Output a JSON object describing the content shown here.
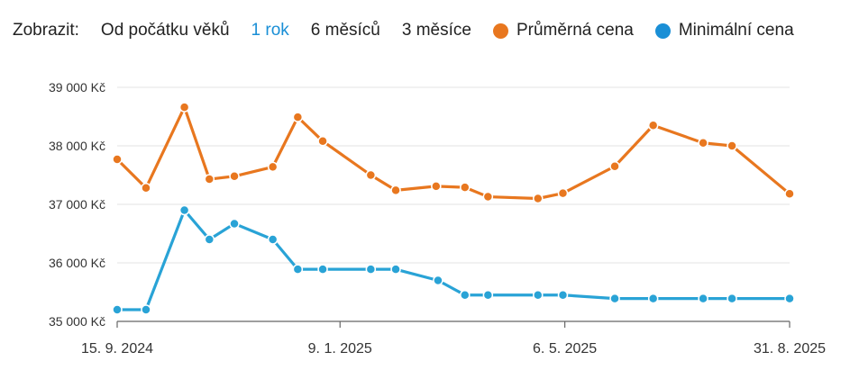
{
  "toolbar": {
    "label": "Zobrazit:",
    "ranges": [
      "Od počátku věků",
      "1 rok",
      "6 měsíců",
      "3 měsíce"
    ],
    "active_range": "1 rok"
  },
  "legend": [
    {
      "name": "Průměrná cena",
      "color": "#e8771f"
    },
    {
      "name": "Minimální cena",
      "color": "#1a8fd6"
    }
  ],
  "chart_data": {
    "type": "line",
    "x_axis": {
      "type": "date",
      "min": "2024-09-15",
      "max": "2025-08-31",
      "tick_dates": [
        "2024-09-15",
        "2025-01-09",
        "2025-05-06",
        "2025-08-31"
      ],
      "tick_labels": [
        "15. 9. 2024",
        "9. 1. 2025",
        "6. 5. 2025",
        "31. 8. 2025"
      ]
    },
    "y_axis": {
      "min": 35000,
      "max": 39000,
      "ticks": [
        35000,
        36000,
        37000,
        38000,
        39000
      ],
      "tick_labels": [
        "35 000 Kč",
        "36 000 Kč",
        "37 000 Kč",
        "38 000 Kč",
        "39 000 Kč"
      ],
      "grid": true
    },
    "series": [
      {
        "name": "Průměrná cena",
        "color": "#e8771f",
        "points": [
          {
            "x": "2024-09-15",
            "y": 37770
          },
          {
            "x": "2024-09-30",
            "y": 37280
          },
          {
            "x": "2024-10-20",
            "y": 38660
          },
          {
            "x": "2024-11-02",
            "y": 37430
          },
          {
            "x": "2024-11-15",
            "y": 37480
          },
          {
            "x": "2024-12-05",
            "y": 37640
          },
          {
            "x": "2024-12-18",
            "y": 38490
          },
          {
            "x": "2024-12-31",
            "y": 38080
          },
          {
            "x": "2025-01-25",
            "y": 37500
          },
          {
            "x": "2025-02-07",
            "y": 37240
          },
          {
            "x": "2025-02-28",
            "y": 37310
          },
          {
            "x": "2025-03-15",
            "y": 37290
          },
          {
            "x": "2025-03-27",
            "y": 37130
          },
          {
            "x": "2025-04-22",
            "y": 37100
          },
          {
            "x": "2025-05-05",
            "y": 37190
          },
          {
            "x": "2025-06-01",
            "y": 37650
          },
          {
            "x": "2025-06-21",
            "y": 38350
          },
          {
            "x": "2025-07-17",
            "y": 38050
          },
          {
            "x": "2025-08-01",
            "y": 38000
          },
          {
            "x": "2025-08-31",
            "y": 37180
          }
        ]
      },
      {
        "name": "Minimální cena",
        "color": "#29a3d6",
        "points": [
          {
            "x": "2024-09-15",
            "y": 35200
          },
          {
            "x": "2024-09-30",
            "y": 35200
          },
          {
            "x": "2024-10-20",
            "y": 36900
          },
          {
            "x": "2024-11-02",
            "y": 36400
          },
          {
            "x": "2024-11-15",
            "y": 36670
          },
          {
            "x": "2024-12-05",
            "y": 36400
          },
          {
            "x": "2024-12-18",
            "y": 35890
          },
          {
            "x": "2024-12-31",
            "y": 35890
          },
          {
            "x": "2025-01-25",
            "y": 35890
          },
          {
            "x": "2025-02-07",
            "y": 35890
          },
          {
            "x": "2025-03-01",
            "y": 35700
          },
          {
            "x": "2025-03-15",
            "y": 35450
          },
          {
            "x": "2025-03-27",
            "y": 35450
          },
          {
            "x": "2025-04-22",
            "y": 35450
          },
          {
            "x": "2025-05-05",
            "y": 35450
          },
          {
            "x": "2025-06-01",
            "y": 35390
          },
          {
            "x": "2025-06-21",
            "y": 35390
          },
          {
            "x": "2025-07-17",
            "y": 35390
          },
          {
            "x": "2025-08-01",
            "y": 35390
          },
          {
            "x": "2025-08-31",
            "y": 35390
          }
        ]
      }
    ]
  }
}
